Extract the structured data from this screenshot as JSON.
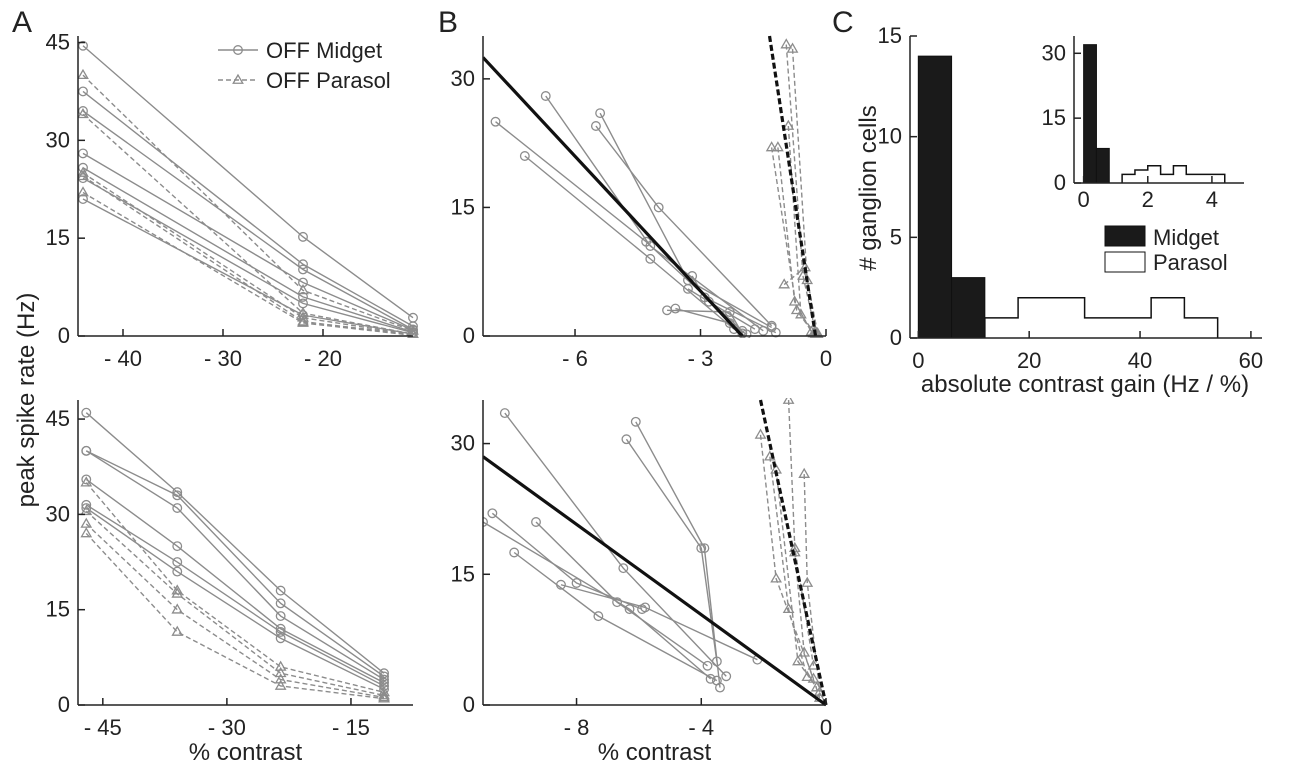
{
  "panels": {
    "A": "A",
    "B": "B",
    "C": "C"
  },
  "colors": {
    "midget": "#8c8c8c",
    "parasol": "#8c8c8c",
    "fit": "#111111",
    "hist_midget": "#1a1a1a",
    "hist_parasol": "#ffffff"
  },
  "chart_data": [
    {
      "id": "A-top",
      "type": "line",
      "xlabel": "",
      "ylabel": "peak spike rate (Hz)",
      "xlim": [
        -44.5,
        -11
      ],
      "ylim": [
        0,
        46
      ],
      "xticks": [
        -40,
        -30,
        -20
      ],
      "xtick_labels": [
        "- 40",
        "- 30",
        "- 20"
      ],
      "yticks": [
        0,
        15,
        30,
        45
      ],
      "ytick_labels": [
        "0",
        "15",
        "30",
        "45"
      ],
      "legend": {
        "midget": "OFF Midget",
        "parasol": "OFF Parasol",
        "position": "top-right"
      },
      "series": [
        {
          "cell": "midget",
          "x": [
            -44,
            -22,
            -11
          ],
          "y": [
            44.5,
            15.2,
            2.8
          ]
        },
        {
          "cell": "midget",
          "x": [
            -44,
            -22,
            -11
          ],
          "y": [
            37.5,
            11.0,
            1.5
          ]
        },
        {
          "cell": "midget",
          "x": [
            -44,
            -22,
            -11
          ],
          "y": [
            34.5,
            10.2,
            1.0
          ]
        },
        {
          "cell": "midget",
          "x": [
            -44,
            -22,
            -11
          ],
          "y": [
            28.0,
            8.2,
            0.9
          ]
        },
        {
          "cell": "midget",
          "x": [
            -44,
            -22,
            -11
          ],
          "y": [
            25.8,
            6.0,
            0.6
          ]
        },
        {
          "cell": "midget",
          "x": [
            -44,
            -22,
            -11
          ],
          "y": [
            24.2,
            5.0,
            0.5
          ]
        },
        {
          "cell": "midget",
          "x": [
            -44,
            -22,
            -11
          ],
          "y": [
            21.0,
            3.2,
            0.3
          ]
        },
        {
          "cell": "parasol",
          "x": [
            -44,
            -22,
            -11
          ],
          "y": [
            40.0,
            7.0,
            0.8
          ]
        },
        {
          "cell": "parasol",
          "x": [
            -44,
            -22,
            -11
          ],
          "y": [
            34.0,
            3.5,
            0.3
          ]
        },
        {
          "cell": "parasol",
          "x": [
            -44,
            -22,
            -11
          ],
          "y": [
            25.0,
            2.8,
            0.2
          ]
        },
        {
          "cell": "parasol",
          "x": [
            -44,
            -22,
            -11
          ],
          "y": [
            24.5,
            2.2,
            0.2
          ]
        },
        {
          "cell": "parasol",
          "x": [
            -44,
            -22,
            -11
          ],
          "y": [
            22.0,
            2.0,
            0.1
          ]
        }
      ]
    },
    {
      "id": "A-bottom",
      "type": "line",
      "xlabel": "% contrast",
      "ylabel": "",
      "xlim": [
        -48,
        -7.5
      ],
      "ylim": [
        0,
        48
      ],
      "xticks": [
        -45,
        -30,
        -15
      ],
      "xtick_labels": [
        "- 45",
        "- 30",
        "- 15"
      ],
      "yticks": [
        0,
        15,
        30,
        45
      ],
      "ytick_labels": [
        "0",
        "15",
        "30",
        "45"
      ],
      "series": [
        {
          "cell": "midget",
          "x": [
            -47,
            -36,
            -23.5,
            -11
          ],
          "y": [
            46.0,
            33.5,
            18.0,
            5.0
          ]
        },
        {
          "cell": "midget",
          "x": [
            -47,
            -36,
            -23.5,
            -11
          ],
          "y": [
            40.0,
            33.0,
            16.0,
            4.5
          ]
        },
        {
          "cell": "midget",
          "x": [
            -47,
            -36,
            -23.5,
            -11
          ],
          "y": [
            40.0,
            31.0,
            14.0,
            4.0
          ]
        },
        {
          "cell": "midget",
          "x": [
            -47,
            -36,
            -23.5,
            -11
          ],
          "y": [
            35.5,
            25.0,
            12.0,
            3.5
          ]
        },
        {
          "cell": "midget",
          "x": [
            -47,
            -36,
            -23.5,
            -11
          ],
          "y": [
            31.5,
            22.5,
            11.5,
            3.0
          ]
        },
        {
          "cell": "midget",
          "x": [
            -47,
            -36,
            -23.5,
            -11
          ],
          "y": [
            31.0,
            21.0,
            10.5,
            2.5
          ]
        },
        {
          "cell": "parasol",
          "x": [
            -47,
            -36,
            -23.5,
            -11
          ],
          "y": [
            35.0,
            18.0,
            6.0,
            2.0
          ]
        },
        {
          "cell": "parasol",
          "x": [
            -47,
            -36,
            -23.5,
            -11
          ],
          "y": [
            30.5,
            17.5,
            5.0,
            1.5
          ]
        },
        {
          "cell": "parasol",
          "x": [
            -47,
            -36,
            -23.5,
            -11
          ],
          "y": [
            28.5,
            15.0,
            4.0,
            1.2
          ]
        },
        {
          "cell": "parasol",
          "x": [
            -47,
            -36,
            -23.5,
            -11
          ],
          "y": [
            27.0,
            11.5,
            3.0,
            1.0
          ]
        }
      ]
    },
    {
      "id": "B-top",
      "type": "line",
      "xlabel": "",
      "ylabel": "",
      "xlim": [
        -8.2,
        0
      ],
      "ylim": [
        0,
        35
      ],
      "xticks": [
        -6,
        -3,
        0
      ],
      "xtick_labels": [
        "- 6",
        "- 3",
        "0"
      ],
      "yticks": [
        0,
        15,
        30
      ],
      "ytick_labels": [
        "0",
        "15",
        "30"
      ],
      "fits": [
        {
          "cell": "midget",
          "style": "solid",
          "x": [
            -8.2,
            -2.0
          ],
          "y": [
            32.5,
            0.0
          ]
        },
        {
          "cell": "parasol",
          "style": "dashed",
          "x": [
            -1.35,
            -0.25
          ],
          "y": [
            35.0,
            0.0
          ]
        }
      ],
      "series": [
        {
          "cell": "midget",
          "x": [
            -7.9,
            -4.3,
            -2.0
          ],
          "y": [
            25.0,
            11.0,
            0.6
          ]
        },
        {
          "cell": "midget",
          "x": [
            -7.2,
            -4.2,
            -2.2
          ],
          "y": [
            21.0,
            9.0,
            0.8
          ]
        },
        {
          "cell": "midget",
          "x": [
            -6.7,
            -4.2,
            -1.5
          ],
          "y": [
            28.0,
            10.5,
            0.6
          ]
        },
        {
          "cell": "midget",
          "x": [
            -5.4,
            -3.3,
            -1.3
          ],
          "y": [
            26.0,
            6.5,
            1.0
          ]
        },
        {
          "cell": "midget",
          "x": [
            -5.5,
            -4.0,
            -1.3
          ],
          "y": [
            24.5,
            15.0,
            1.2
          ]
        },
        {
          "cell": "midget",
          "x": [
            -3.3,
            -2.8,
            -1.7
          ],
          "y": [
            5.5,
            4.0,
            0.8
          ]
        },
        {
          "cell": "midget",
          "x": [
            -3.2,
            -2.9,
            -1.2
          ],
          "y": [
            7.0,
            4.5,
            0.4
          ]
        },
        {
          "cell": "midget",
          "x": [
            -3.8,
            -2.3,
            -2.0
          ],
          "y": [
            3.0,
            2.8,
            0.3
          ]
        },
        {
          "cell": "midget",
          "x": [
            -3.6,
            -2.3,
            -1.9
          ],
          "y": [
            3.2,
            1.5,
            0.2
          ]
        },
        {
          "cell": "parasol",
          "x": [
            -0.95,
            -0.55,
            -0.25
          ],
          "y": [
            34.0,
            7.0,
            0.5
          ]
        },
        {
          "cell": "parasol",
          "x": [
            -0.8,
            -0.45,
            -0.2
          ],
          "y": [
            33.5,
            6.5,
            0.3
          ]
        },
        {
          "cell": "parasol",
          "x": [
            -1.3,
            -0.7,
            -0.3
          ],
          "y": [
            22.0,
            3.0,
            0.3
          ]
        },
        {
          "cell": "parasol",
          "x": [
            -1.15,
            -0.75,
            -0.35
          ],
          "y": [
            22.0,
            4.0,
            0.5
          ]
        },
        {
          "cell": "parasol",
          "x": [
            -0.9,
            -0.6,
            -0.25
          ],
          "y": [
            24.5,
            2.5,
            0.2
          ]
        },
        {
          "cell": "parasol",
          "x": [
            -1.0,
            -0.5,
            -0.2
          ],
          "y": [
            6.0,
            8.0,
            0.2
          ]
        }
      ]
    },
    {
      "id": "B-bottom",
      "type": "line",
      "xlabel": "% contrast",
      "ylabel": "",
      "xlim": [
        -11,
        0
      ],
      "ylim": [
        0,
        35
      ],
      "xticks": [
        -8,
        -4,
        0
      ],
      "xtick_labels": [
        "- 8",
        "- 4",
        "0"
      ],
      "yticks": [
        0,
        15,
        30
      ],
      "ytick_labels": [
        "0",
        "15",
        "30"
      ],
      "fits": [
        {
          "cell": "midget",
          "style": "solid",
          "x": [
            -11,
            0
          ],
          "y": [
            28.5,
            0.0
          ]
        },
        {
          "cell": "parasol",
          "style": "dashed",
          "x": [
            -2.1,
            0
          ],
          "y": [
            35.0,
            0.0
          ]
        }
      ],
      "series": [
        {
          "cell": "midget",
          "x": [
            -10.3,
            -6.5,
            -3.2
          ],
          "y": [
            33.5,
            15.7,
            3.3
          ]
        },
        {
          "cell": "midget",
          "x": [
            -6.4,
            -4.0,
            -3.5
          ],
          "y": [
            30.5,
            18.0,
            5.0
          ]
        },
        {
          "cell": "midget",
          "x": [
            -6.1,
            -3.9,
            -3.4
          ],
          "y": [
            32.5,
            18.0,
            2.0
          ]
        },
        {
          "cell": "midget",
          "x": [
            -10.7,
            -8.0,
            -5.9
          ],
          "y": [
            22.0,
            14.0,
            11.0
          ]
        },
        {
          "cell": "midget",
          "x": [
            -9.3,
            -6.7,
            -3.8
          ],
          "y": [
            21.0,
            11.8,
            4.5
          ]
        },
        {
          "cell": "midget",
          "x": [
            -11,
            -6.3,
            -3.7
          ],
          "y": [
            21.0,
            11.0,
            3.0
          ]
        },
        {
          "cell": "midget",
          "x": [
            -10.0,
            -7.3,
            -3.5
          ],
          "y": [
            17.5,
            10.2,
            2.8
          ]
        },
        {
          "cell": "midget",
          "x": [
            -8.5,
            -5.8,
            -2.2
          ],
          "y": [
            13.8,
            11.2,
            5.2
          ]
        },
        {
          "cell": "parasol",
          "x": [
            -1.2,
            -1.0,
            -0.4
          ],
          "y": [
            35.0,
            18.0,
            4.5
          ]
        },
        {
          "cell": "parasol",
          "x": [
            -2.1,
            -1.6,
            -0.4
          ],
          "y": [
            31.0,
            14.5,
            3.0
          ]
        },
        {
          "cell": "parasol",
          "x": [
            -1.8,
            -1.2,
            -0.6
          ],
          "y": [
            28.5,
            11.0,
            3.2
          ]
        },
        {
          "cell": "parasol",
          "x": [
            -0.7,
            -0.6,
            -0.2
          ],
          "y": [
            26.5,
            14.0,
            1.5
          ]
        },
        {
          "cell": "parasol",
          "x": [
            -1.6,
            -0.9,
            -0.3
          ],
          "y": [
            27.0,
            5.0,
            2.0
          ]
        },
        {
          "cell": "parasol",
          "x": [
            -1.0,
            -0.7,
            -0.2
          ],
          "y": [
            17.5,
            6.0,
            0.8
          ]
        }
      ]
    },
    {
      "id": "C-main",
      "type": "bar",
      "xlabel": "absolute contrast gain (Hz / %)",
      "ylabel": "# ganglion cells",
      "xlim": [
        -1.5,
        62
      ],
      "ylim": [
        0,
        15
      ],
      "xticks": [
        0,
        20,
        40,
        60
      ],
      "xtick_labels": [
        "0",
        "20",
        "40",
        "60"
      ],
      "yticks": [
        0,
        5,
        10,
        15
      ],
      "ytick_labels": [
        "0",
        "5",
        "10",
        "15"
      ],
      "bin_edges": [
        0,
        6,
        12,
        18,
        24,
        30,
        36,
        42,
        48,
        54
      ],
      "series": [
        {
          "name": "Midget",
          "counts": [
            14,
            3,
            0,
            0,
            0,
            0,
            0,
            0,
            0
          ]
        },
        {
          "name": "Parasol",
          "counts": [
            0,
            0,
            1,
            2,
            2,
            1,
            1,
            2,
            1
          ]
        }
      ],
      "legend_position": "right"
    },
    {
      "id": "C-inset",
      "type": "bar",
      "xlabel": "",
      "ylabel": "",
      "xlim": [
        -0.3,
        5
      ],
      "ylim": [
        0,
        34
      ],
      "xticks": [
        0,
        2,
        4
      ],
      "xtick_labels": [
        "0",
        "2",
        "4"
      ],
      "yticks": [
        0,
        15,
        30
      ],
      "ytick_labels": [
        "0",
        "15",
        "30"
      ],
      "bin_edges": [
        0,
        0.4,
        0.8,
        1.2,
        1.6,
        2.0,
        2.4,
        2.8,
        3.2,
        3.6,
        4.0,
        4.4
      ],
      "series": [
        {
          "name": "Midget",
          "counts": [
            32,
            8,
            0,
            0,
            0,
            0,
            0,
            0,
            0,
            0,
            0
          ]
        },
        {
          "name": "Parasol",
          "counts": [
            0,
            0,
            0,
            2,
            3,
            4,
            2,
            4,
            2,
            2,
            2
          ]
        }
      ]
    }
  ]
}
